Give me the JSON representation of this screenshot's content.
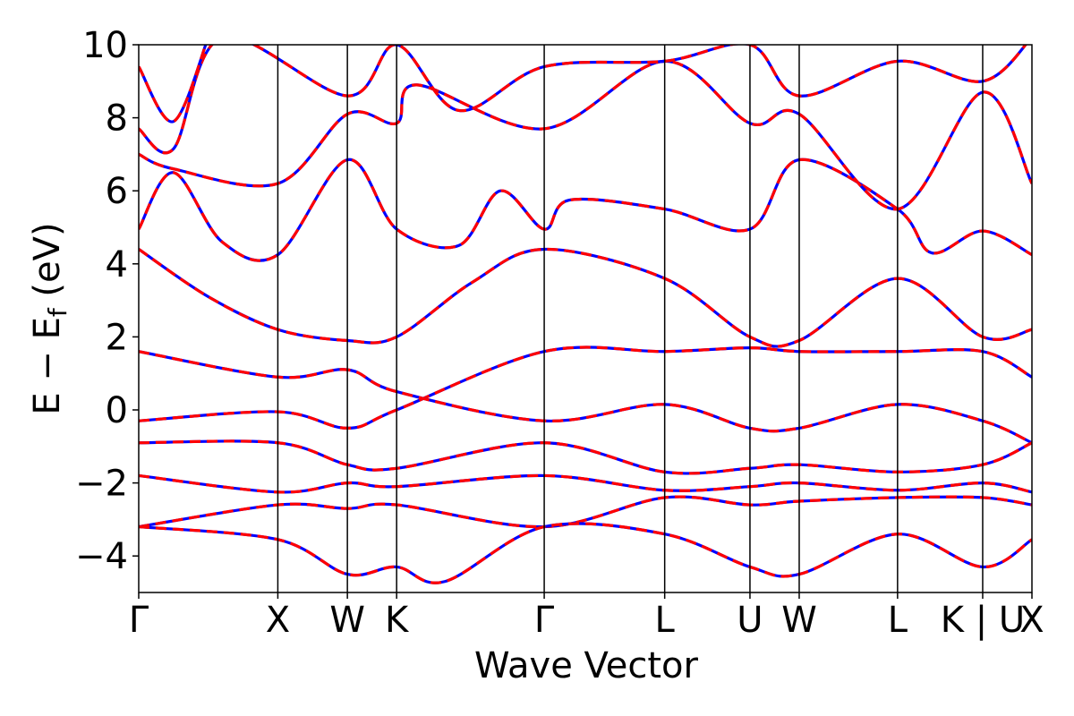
{
  "chart_data": {
    "type": "line",
    "title": "",
    "xlabel": "Wave Vector",
    "ylabel_main": "E − E",
    "ylabel_sub": "f",
    "ylabel_unit": " (eV)",
    "ylim": [
      -5,
      10
    ],
    "yticks": [
      -4,
      -2,
      0,
      2,
      4,
      6,
      8,
      10
    ],
    "ytick_labels": [
      "−4",
      "−2",
      "0",
      "2",
      "4",
      "6",
      "8",
      "10"
    ],
    "kpath": [
      {
        "label": "Γ",
        "pos": 0.0
      },
      {
        "label": "X",
        "pos": 1.0
      },
      {
        "label": "W",
        "pos": 1.5
      },
      {
        "label": "K",
        "pos": 1.854
      },
      {
        "label": "Γ",
        "pos": 2.915
      },
      {
        "label": "L",
        "pos": 3.781
      },
      {
        "label": "U",
        "pos": 4.394
      },
      {
        "label": "W",
        "pos": 4.748
      },
      {
        "label": "L",
        "pos": 5.455
      },
      {
        "label": "K | U",
        "pos": 6.067
      },
      {
        "label": "X",
        "pos": 6.421
      }
    ],
    "grid": false,
    "legend": "none",
    "series": [
      {
        "color": "#0000ff",
        "style": "solid",
        "points": [
          [
            0,
            -0.3
          ],
          [
            1.0,
            -0.05
          ],
          [
            1.5,
            -0.5
          ],
          [
            1.854,
            0.0
          ],
          [
            2.915,
            1.6
          ],
          [
            3.781,
            1.6
          ],
          [
            4.394,
            1.7
          ],
          [
            4.748,
            1.6
          ],
          [
            5.455,
            1.6
          ],
          [
            6.067,
            1.6
          ],
          [
            6.421,
            0.9
          ]
        ]
      },
      {
        "color": "#ff0000",
        "style": "dashed",
        "points": [
          [
            0,
            -0.3
          ],
          [
            1.0,
            -0.05
          ],
          [
            1.5,
            -0.5
          ],
          [
            1.854,
            0.0
          ],
          [
            2.915,
            1.6
          ],
          [
            3.781,
            1.6
          ],
          [
            4.394,
            1.7
          ],
          [
            4.748,
            1.6
          ],
          [
            5.455,
            1.6
          ],
          [
            6.067,
            1.6
          ],
          [
            6.421,
            0.9
          ]
        ]
      },
      {
        "color": "#0000ff",
        "style": "solid",
        "points": [
          [
            0,
            1.6
          ],
          [
            1.0,
            0.9
          ],
          [
            1.5,
            1.1
          ],
          [
            1.854,
            0.5
          ],
          [
            2.915,
            -0.3
          ],
          [
            3.781,
            0.15
          ],
          [
            4.394,
            -0.5
          ],
          [
            4.748,
            -0.5
          ],
          [
            5.455,
            0.15
          ],
          [
            6.067,
            -0.3
          ],
          [
            6.421,
            -0.9
          ]
        ]
      },
      {
        "color": "#ff0000",
        "style": "dashed",
        "points": [
          [
            0,
            1.6
          ],
          [
            1.0,
            0.9
          ],
          [
            1.5,
            1.1
          ],
          [
            1.854,
            0.5
          ],
          [
            2.915,
            -0.3
          ],
          [
            3.781,
            0.15
          ],
          [
            4.394,
            -0.5
          ],
          [
            4.748,
            -0.5
          ],
          [
            5.455,
            0.15
          ],
          [
            6.067,
            -0.3
          ],
          [
            6.421,
            -0.9
          ]
        ]
      },
      {
        "color": "#0000ff",
        "style": "solid",
        "points": [
          [
            0,
            -0.9
          ],
          [
            1.0,
            -0.9
          ],
          [
            1.5,
            -1.5
          ],
          [
            1.854,
            -1.6
          ],
          [
            2.915,
            -0.9
          ],
          [
            3.781,
            -1.7
          ],
          [
            4.394,
            -1.6
          ],
          [
            4.748,
            -1.5
          ],
          [
            5.455,
            -1.7
          ],
          [
            6.067,
            -1.5
          ],
          [
            6.421,
            -0.9
          ]
        ]
      },
      {
        "color": "#ff0000",
        "style": "dashed",
        "points": [
          [
            0,
            -0.9
          ],
          [
            1.0,
            -0.9
          ],
          [
            1.5,
            -1.5
          ],
          [
            1.854,
            -1.6
          ],
          [
            2.915,
            -0.9
          ],
          [
            3.781,
            -1.7
          ],
          [
            4.394,
            -1.6
          ],
          [
            4.748,
            -1.5
          ],
          [
            5.455,
            -1.7
          ],
          [
            6.067,
            -1.5
          ],
          [
            6.421,
            -0.9
          ]
        ]
      },
      {
        "color": "#0000ff",
        "style": "solid",
        "points": [
          [
            0,
            -1.8
          ],
          [
            1.0,
            -2.25
          ],
          [
            1.5,
            -2.0
          ],
          [
            1.854,
            -2.1
          ],
          [
            2.915,
            -1.8
          ],
          [
            3.781,
            -2.2
          ],
          [
            4.394,
            -2.1
          ],
          [
            4.748,
            -2.0
          ],
          [
            5.455,
            -2.2
          ],
          [
            6.067,
            -2.0
          ],
          [
            6.421,
            -2.25
          ]
        ]
      },
      {
        "color": "#ff0000",
        "style": "dashed",
        "points": [
          [
            0,
            -1.8
          ],
          [
            1.0,
            -2.25
          ],
          [
            1.5,
            -2.0
          ],
          [
            1.854,
            -2.1
          ],
          [
            2.915,
            -1.8
          ],
          [
            3.781,
            -2.2
          ],
          [
            4.394,
            -2.1
          ],
          [
            4.748,
            -2.0
          ],
          [
            5.455,
            -2.2
          ],
          [
            6.067,
            -2.0
          ],
          [
            6.421,
            -2.25
          ]
        ]
      },
      {
        "color": "#0000ff",
        "style": "solid",
        "points": [
          [
            0,
            -3.2
          ],
          [
            1.0,
            -2.6
          ],
          [
            1.5,
            -2.7
          ],
          [
            1.854,
            -2.6
          ],
          [
            2.915,
            -3.2
          ],
          [
            3.781,
            -2.4
          ],
          [
            4.394,
            -2.6
          ],
          [
            4.748,
            -2.5
          ],
          [
            5.455,
            -2.4
          ],
          [
            6.067,
            -2.4
          ],
          [
            6.421,
            -2.6
          ]
        ]
      },
      {
        "color": "#ff0000",
        "style": "dashed",
        "points": [
          [
            0,
            -3.2
          ],
          [
            1.0,
            -2.6
          ],
          [
            1.5,
            -2.7
          ],
          [
            1.854,
            -2.6
          ],
          [
            2.915,
            -3.2
          ],
          [
            3.781,
            -2.4
          ],
          [
            4.394,
            -2.6
          ],
          [
            4.748,
            -2.5
          ],
          [
            5.455,
            -2.4
          ],
          [
            6.067,
            -2.4
          ],
          [
            6.421,
            -2.6
          ]
        ]
      },
      {
        "color": "#0000ff",
        "style": "solid",
        "points": [
          [
            0,
            -3.2
          ],
          [
            1.0,
            -3.55
          ],
          [
            1.5,
            -4.5
          ],
          [
            1.854,
            -4.3
          ],
          [
            2.2,
            -4.7
          ],
          [
            2.915,
            -3.2
          ],
          [
            3.781,
            -3.4
          ],
          [
            4.394,
            -4.3
          ],
          [
            4.748,
            -4.5
          ],
          [
            5.455,
            -3.4
          ],
          [
            6.067,
            -4.3
          ],
          [
            6.421,
            -3.55
          ]
        ]
      },
      {
        "color": "#ff0000",
        "style": "dashed",
        "points": [
          [
            0,
            -3.2
          ],
          [
            1.0,
            -3.55
          ],
          [
            1.5,
            -4.5
          ],
          [
            1.854,
            -4.3
          ],
          [
            2.2,
            -4.7
          ],
          [
            2.915,
            -3.2
          ],
          [
            3.781,
            -3.4
          ],
          [
            4.394,
            -4.3
          ],
          [
            4.748,
            -4.5
          ],
          [
            5.455,
            -3.4
          ],
          [
            6.067,
            -4.3
          ],
          [
            6.421,
            -3.55
          ]
        ]
      },
      {
        "color": "#0000ff",
        "style": "solid",
        "points": [
          [
            0,
            4.4
          ],
          [
            0.5,
            3.1
          ],
          [
            1.0,
            2.2
          ],
          [
            1.5,
            1.9
          ],
          [
            1.854,
            2.0
          ],
          [
            2.4,
            3.5
          ],
          [
            2.915,
            4.4
          ],
          [
            3.781,
            3.6
          ],
          [
            4.394,
            2.0
          ],
          [
            4.748,
            1.9
          ],
          [
            5.455,
            3.6
          ],
          [
            6.067,
            2.0
          ],
          [
            6.421,
            2.2
          ]
        ]
      },
      {
        "color": "#ff0000",
        "style": "dashed",
        "points": [
          [
            0,
            4.4
          ],
          [
            0.5,
            3.1
          ],
          [
            1.0,
            2.2
          ],
          [
            1.5,
            1.9
          ],
          [
            1.854,
            2.0
          ],
          [
            2.4,
            3.5
          ],
          [
            2.915,
            4.4
          ],
          [
            3.781,
            3.6
          ],
          [
            4.394,
            2.0
          ],
          [
            4.748,
            1.9
          ],
          [
            5.455,
            3.6
          ],
          [
            6.067,
            2.0
          ],
          [
            6.421,
            2.2
          ]
        ]
      },
      {
        "color": "#0000ff",
        "style": "solid",
        "points": [
          [
            0,
            4.95
          ],
          [
            0.25,
            6.5
          ],
          [
            0.6,
            4.6
          ],
          [
            1.0,
            4.25
          ],
          [
            1.5,
            6.85
          ],
          [
            1.854,
            4.95
          ],
          [
            2.3,
            4.5
          ],
          [
            2.6,
            6.0
          ],
          [
            2.915,
            4.95
          ],
          [
            3.1,
            5.75
          ],
          [
            3.781,
            5.5
          ],
          [
            4.394,
            4.95
          ],
          [
            4.748,
            6.85
          ],
          [
            5.455,
            5.5
          ],
          [
            5.7,
            4.3
          ],
          [
            6.067,
            4.9
          ],
          [
            6.421,
            4.25
          ]
        ]
      },
      {
        "color": "#ff0000",
        "style": "dashed",
        "points": [
          [
            0,
            4.95
          ],
          [
            0.25,
            6.5
          ],
          [
            0.6,
            4.6
          ],
          [
            1.0,
            4.25
          ],
          [
            1.5,
            6.85
          ],
          [
            1.854,
            4.95
          ],
          [
            2.3,
            4.5
          ],
          [
            2.6,
            6.0
          ],
          [
            2.915,
            4.95
          ],
          [
            3.1,
            5.75
          ],
          [
            3.781,
            5.5
          ],
          [
            4.394,
            4.95
          ],
          [
            4.748,
            6.85
          ],
          [
            5.455,
            5.5
          ],
          [
            5.7,
            4.3
          ],
          [
            6.067,
            4.9
          ],
          [
            6.421,
            4.25
          ]
        ]
      },
      {
        "color": "#0000ff",
        "style": "solid",
        "points": [
          [
            0,
            7.0
          ],
          [
            0.25,
            6.6
          ],
          [
            1.0,
            6.2
          ],
          [
            1.5,
            8.1
          ],
          [
            1.854,
            7.85
          ],
          [
            2.0,
            8.9
          ],
          [
            2.915,
            7.7
          ],
          [
            3.781,
            9.55
          ],
          [
            4.394,
            7.85
          ],
          [
            4.748,
            8.1
          ],
          [
            5.455,
            5.5
          ],
          [
            6.067,
            8.7
          ],
          [
            6.421,
            6.2
          ]
        ]
      },
      {
        "color": "#ff0000",
        "style": "dashed",
        "points": [
          [
            0,
            7.0
          ],
          [
            0.25,
            6.6
          ],
          [
            1.0,
            6.2
          ],
          [
            1.5,
            8.1
          ],
          [
            1.854,
            7.85
          ],
          [
            2.0,
            8.9
          ],
          [
            2.915,
            7.7
          ],
          [
            3.781,
            9.55
          ],
          [
            4.394,
            7.85
          ],
          [
            4.748,
            8.1
          ],
          [
            5.455,
            5.5
          ],
          [
            6.067,
            8.7
          ],
          [
            6.421,
            6.2
          ]
        ]
      },
      {
        "color": "#0000ff",
        "style": "solid",
        "points": [
          [
            0,
            7.7
          ],
          [
            0.25,
            7.15
          ],
          [
            0.6,
            10.2
          ],
          [
            1.5,
            8.6
          ],
          [
            1.854,
            10.0
          ],
          [
            2.3,
            8.2
          ],
          [
            2.915,
            9.4
          ],
          [
            3.781,
            9.55
          ],
          [
            4.394,
            10.0
          ],
          [
            4.748,
            8.6
          ],
          [
            5.455,
            9.55
          ],
          [
            6.067,
            9.0
          ],
          [
            6.421,
            10.2
          ]
        ]
      },
      {
        "color": "#ff0000",
        "style": "dashed",
        "points": [
          [
            0,
            7.7
          ],
          [
            0.25,
            7.15
          ],
          [
            0.6,
            10.2
          ],
          [
            1.5,
            8.6
          ],
          [
            1.854,
            10.0
          ],
          [
            2.3,
            8.2
          ],
          [
            2.915,
            9.4
          ],
          [
            3.781,
            9.55
          ],
          [
            4.394,
            10.0
          ],
          [
            4.748,
            8.6
          ],
          [
            5.455,
            9.55
          ],
          [
            6.067,
            9.0
          ],
          [
            6.421,
            10.2
          ]
        ]
      },
      {
        "color": "#0000ff",
        "style": "solid",
        "points": [
          [
            0,
            9.4
          ],
          [
            0.25,
            7.9
          ],
          [
            0.5,
            10.2
          ]
        ]
      },
      {
        "color": "#ff0000",
        "style": "dashed",
        "points": [
          [
            0,
            9.4
          ],
          [
            0.25,
            7.9
          ],
          [
            0.5,
            10.2
          ]
        ]
      }
    ]
  }
}
